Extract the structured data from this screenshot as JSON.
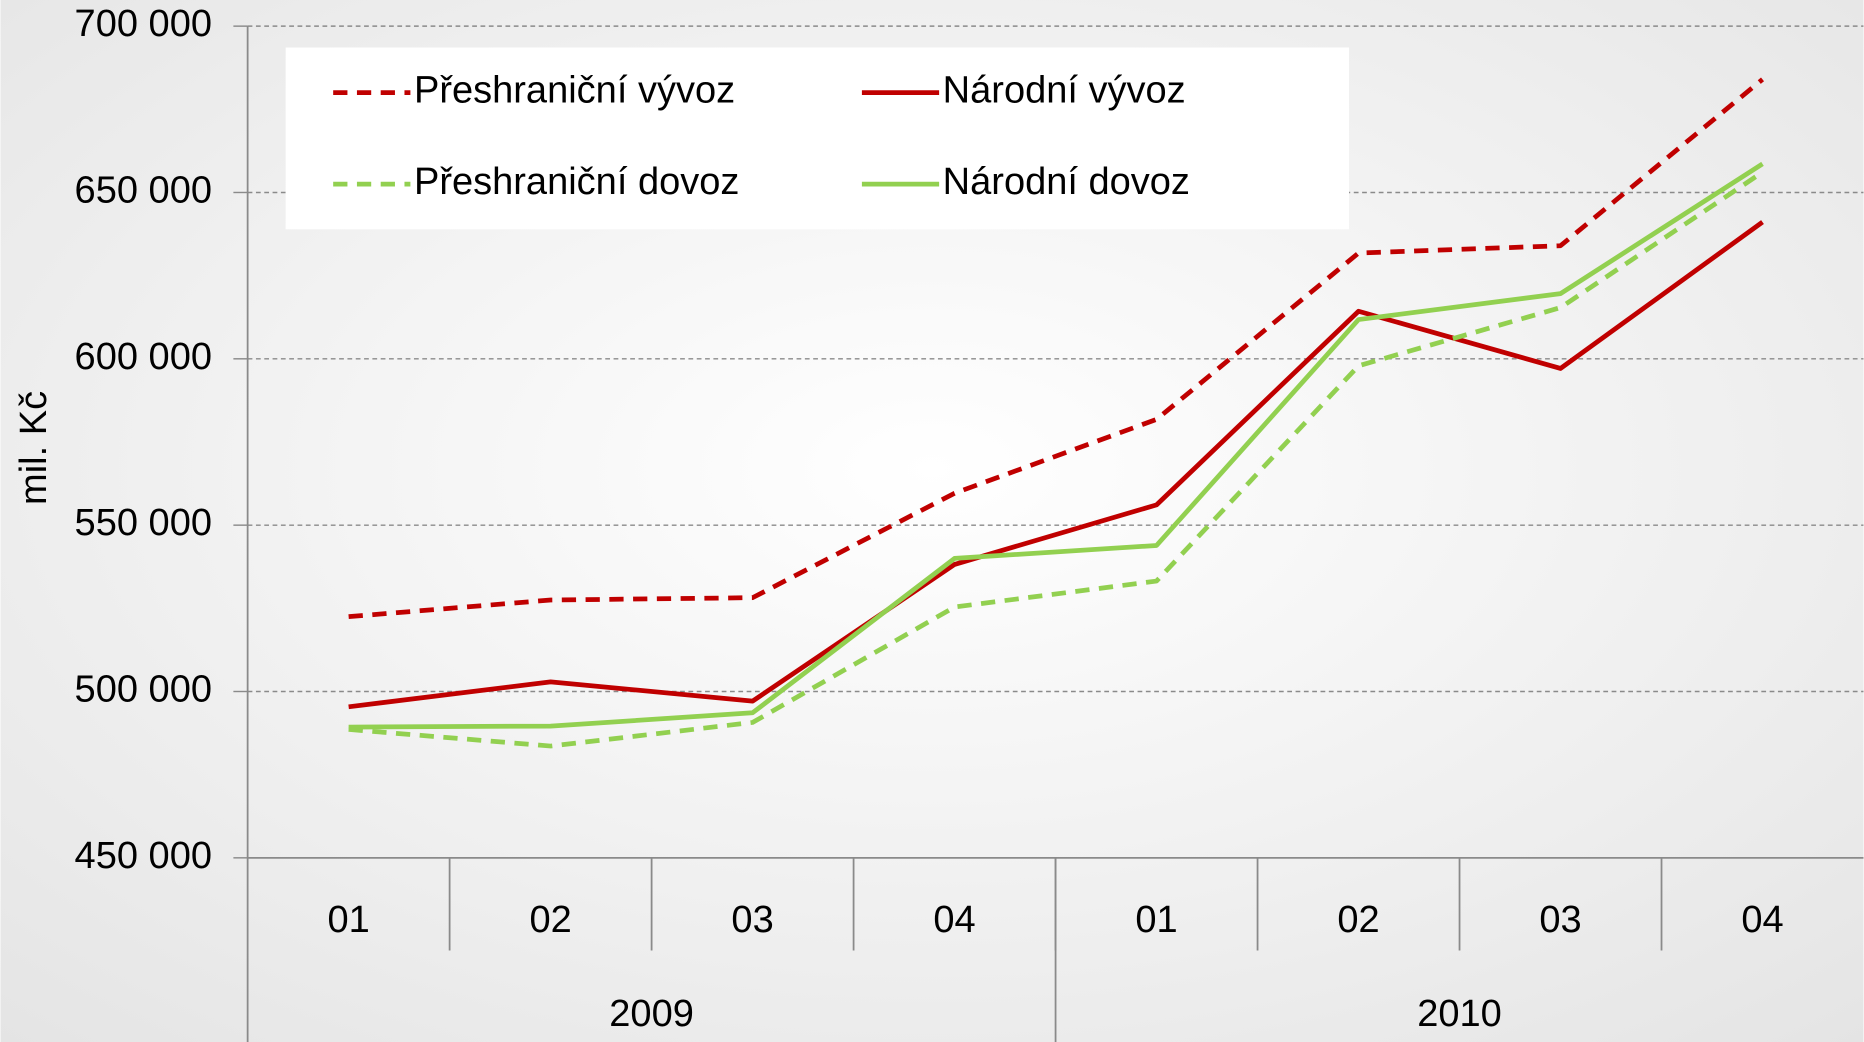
{
  "chart_data": {
    "type": "line",
    "y_label": "mil. Kč",
    "categories": [
      "01",
      "02",
      "03",
      "04",
      "01",
      "02",
      "03",
      "04"
    ],
    "group_labels": [
      "2009",
      "2010"
    ],
    "ylim": [
      450000,
      700000
    ],
    "yticks": [
      {
        "value": 450000,
        "label": "450 000"
      },
      {
        "value": 500000,
        "label": "500 000"
      },
      {
        "value": 550000,
        "label": "550 000"
      },
      {
        "value": 600000,
        "label": "600 000"
      },
      {
        "value": 650000,
        "label": "650 000"
      },
      {
        "value": 700000,
        "label": "700 000"
      }
    ],
    "grid": true,
    "series": [
      {
        "name": "Přeshraniční vývoz",
        "color": "#c00000",
        "dashed": true,
        "values": [
          522500,
          527500,
          528200,
          559600,
          581800,
          631800,
          634000,
          684000
        ]
      },
      {
        "name": "Národní vývoz",
        "color": "#c00000",
        "dashed": false,
        "values": [
          495400,
          502900,
          497100,
          538200,
          556100,
          614300,
          597100,
          641100
        ]
      },
      {
        "name": "Přeshraniční dovoz",
        "color": "#92d050",
        "dashed": true,
        "values": [
          488600,
          483600,
          490700,
          525400,
          533200,
          597900,
          615400,
          656100
        ]
      },
      {
        "name": "Národní dovoz",
        "color": "#92d050",
        "dashed": false,
        "values": [
          489300,
          489600,
          493600,
          540000,
          543900,
          611800,
          619600,
          658600
        ]
      }
    ]
  }
}
